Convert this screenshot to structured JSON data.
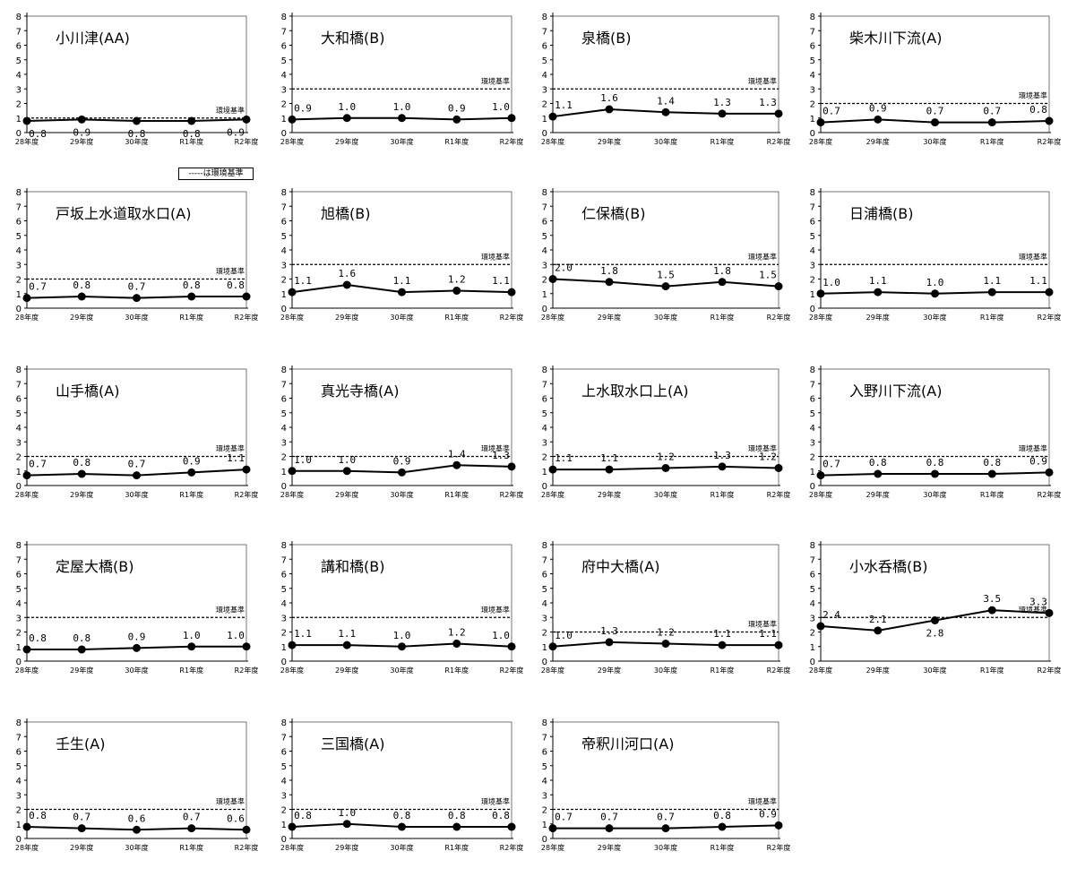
{
  "legend_note": "-----は環境基準",
  "std_label": "環境基準",
  "x_categories": [
    "28年度",
    "29年度",
    "30年度",
    "R1年度",
    "R2年度"
  ],
  "y_ticks": [
    "0",
    "1",
    "2",
    "3",
    "4",
    "5",
    "6",
    "7",
    "8"
  ],
  "chart_data": [
    {
      "type": "line",
      "title": "小川津(AA)",
      "categories": [
        "28年度",
        "29年度",
        "30年度",
        "R1年度",
        "R2年度"
      ],
      "values": [
        0.8,
        0.9,
        0.8,
        0.8,
        0.9
      ],
      "value_labels": [
        "0.8",
        "0.9",
        "0.8",
        "0.8",
        "0.9"
      ],
      "standard": 1,
      "ylim": [
        0,
        8
      ]
    },
    {
      "type": "line",
      "title": "大和橋(B)",
      "categories": [
        "28年度",
        "29年度",
        "30年度",
        "R1年度",
        "R2年度"
      ],
      "values": [
        0.9,
        1.0,
        1.0,
        0.9,
        1.0
      ],
      "value_labels": [
        "0.9",
        "1.0",
        "1.0",
        "0.9",
        "1.0"
      ],
      "standard": 3,
      "ylim": [
        0,
        8
      ]
    },
    {
      "type": "line",
      "title": "泉橋(B)",
      "categories": [
        "28年度",
        "29年度",
        "30年度",
        "R1年度",
        "R2年度"
      ],
      "values": [
        1.1,
        1.6,
        1.4,
        1.3,
        1.3
      ],
      "value_labels": [
        "1.1",
        "1.6",
        "1.4",
        "1.3",
        "1.3"
      ],
      "standard": 3,
      "ylim": [
        0,
        8
      ]
    },
    {
      "type": "line",
      "title": "柴木川下流(A)",
      "categories": [
        "28年度",
        "29年度",
        "30年度",
        "R1年度",
        "R2年度"
      ],
      "values": [
        0.7,
        0.9,
        0.7,
        0.7,
        0.8
      ],
      "value_labels": [
        "0.7",
        "0.9",
        "0.7",
        "0.7",
        "0.8"
      ],
      "standard": 2,
      "ylim": [
        0,
        8
      ]
    },
    {
      "type": "line",
      "title": "戸坂上水道取水口(A)",
      "categories": [
        "28年度",
        "29年度",
        "30年度",
        "R1年度",
        "R2年度"
      ],
      "values": [
        0.7,
        0.8,
        0.7,
        0.8,
        0.8
      ],
      "value_labels": [
        "0.7",
        "0.8",
        "0.7",
        "0.8",
        "0.8"
      ],
      "standard": 2,
      "ylim": [
        0,
        8
      ]
    },
    {
      "type": "line",
      "title": "旭橋(B)",
      "categories": [
        "28年度",
        "29年度",
        "30年度",
        "R1年度",
        "R2年度"
      ],
      "values": [
        1.1,
        1.6,
        1.1,
        1.2,
        1.1
      ],
      "value_labels": [
        "1.1",
        "1.6",
        "1.1",
        "1.2",
        "1.1"
      ],
      "standard": 3,
      "ylim": [
        0,
        8
      ]
    },
    {
      "type": "line",
      "title": "仁保橋(B)",
      "categories": [
        "28年度",
        "29年度",
        "30年度",
        "R1年度",
        "R2年度"
      ],
      "values": [
        2.0,
        1.8,
        1.5,
        1.8,
        1.5
      ],
      "value_labels": [
        "2.0",
        "1.8",
        "1.5",
        "1.8",
        "1.5"
      ],
      "standard": 3,
      "ylim": [
        0,
        8
      ]
    },
    {
      "type": "line",
      "title": "日浦橋(B)",
      "categories": [
        "28年度",
        "29年度",
        "30年度",
        "R1年度",
        "R2年度"
      ],
      "values": [
        1.0,
        1.1,
        1.0,
        1.1,
        1.1
      ],
      "value_labels": [
        "1.0",
        "1.1",
        "1.0",
        "1.1",
        "1.1"
      ],
      "standard": 3,
      "ylim": [
        0,
        8
      ]
    },
    {
      "type": "line",
      "title": "山手橋(A)",
      "categories": [
        "28年度",
        "29年度",
        "30年度",
        "R1年度",
        "R2年度"
      ],
      "values": [
        0.7,
        0.8,
        0.7,
        0.9,
        1.1
      ],
      "value_labels": [
        "0.7",
        "0.8",
        "0.7",
        "0.9",
        "1.1"
      ],
      "standard": 2,
      "ylim": [
        0,
        8
      ]
    },
    {
      "type": "line",
      "title": "真光寺橋(A)",
      "categories": [
        "28年度",
        "29年度",
        "30年度",
        "R1年度",
        "R2年度"
      ],
      "values": [
        1.0,
        1.0,
        0.9,
        1.4,
        1.3
      ],
      "value_labels": [
        "1.0",
        "1.0",
        "0.9",
        "1.4",
        "1.3"
      ],
      "standard": 2,
      "ylim": [
        0,
        8
      ]
    },
    {
      "type": "line",
      "title": "上水取水口上(A)",
      "categories": [
        "28年度",
        "29年度",
        "30年度",
        "R1年度",
        "R2年度"
      ],
      "values": [
        1.1,
        1.1,
        1.2,
        1.3,
        1.2
      ],
      "value_labels": [
        "1.1",
        "1.1",
        "1.2",
        "1.3",
        "1.2"
      ],
      "standard": 2,
      "ylim": [
        0,
        8
      ]
    },
    {
      "type": "line",
      "title": "入野川下流(A)",
      "categories": [
        "28年度",
        "29年度",
        "30年度",
        "R1年度",
        "R2年度"
      ],
      "values": [
        0.7,
        0.8,
        0.8,
        0.8,
        0.9
      ],
      "value_labels": [
        "0.7",
        "0.8",
        "0.8",
        "0.8",
        "0.9"
      ],
      "standard": 2,
      "ylim": [
        0,
        8
      ]
    },
    {
      "type": "line",
      "title": "定屋大橋(B)",
      "categories": [
        "28年度",
        "29年度",
        "30年度",
        "R1年度",
        "R2年度"
      ],
      "values": [
        0.8,
        0.8,
        0.9,
        1.0,
        1.0
      ],
      "value_labels": [
        "0.8",
        "0.8",
        "0.9",
        "1.0",
        "1.0"
      ],
      "standard": 3,
      "ylim": [
        0,
        8
      ]
    },
    {
      "type": "line",
      "title": "講和橋(B)",
      "categories": [
        "28年度",
        "29年度",
        "30年度",
        "R1年度",
        "R2年度"
      ],
      "values": [
        1.1,
        1.1,
        1.0,
        1.2,
        1.0
      ],
      "value_labels": [
        "1.1",
        "1.1",
        "1.0",
        "1.2",
        "1.0"
      ],
      "standard": 3,
      "ylim": [
        0,
        8
      ]
    },
    {
      "type": "line",
      "title": "府中大橋(A)",
      "categories": [
        "28年度",
        "29年度",
        "30年度",
        "R1年度",
        "R2年度"
      ],
      "values": [
        1.0,
        1.3,
        1.2,
        1.1,
        1.1
      ],
      "value_labels": [
        "1.0",
        "1.3",
        "1.2",
        "1.1",
        "1.1"
      ],
      "standard": 2,
      "ylim": [
        0,
        8
      ]
    },
    {
      "type": "line",
      "title": "小水呑橋(B)",
      "categories": [
        "28年度",
        "29年度",
        "30年度",
        "R1年度",
        "R2年度"
      ],
      "values": [
        2.4,
        2.1,
        2.8,
        3.5,
        3.3
      ],
      "value_labels": [
        "2.4",
        "2.1",
        "2.8",
        "3.5",
        "3.3"
      ],
      "standard": 3,
      "ylim": [
        0,
        8
      ]
    },
    {
      "type": "line",
      "title": "壬生(A)",
      "categories": [
        "28年度",
        "29年度",
        "30年度",
        "R1年度",
        "R2年度"
      ],
      "values": [
        0.8,
        0.7,
        0.6,
        0.7,
        0.6
      ],
      "value_labels": [
        "0.8",
        "0.7",
        "0.6",
        "0.7",
        "0.6"
      ],
      "standard": 2,
      "ylim": [
        0,
        8
      ]
    },
    {
      "type": "line",
      "title": "三国橋(A)",
      "categories": [
        "28年度",
        "29年度",
        "30年度",
        "R1年度",
        "R2年度"
      ],
      "values": [
        0.8,
        1.0,
        0.8,
        0.8,
        0.8
      ],
      "value_labels": [
        "0.8",
        "1.0",
        "0.8",
        "0.8",
        "0.8"
      ],
      "standard": 2,
      "ylim": [
        0,
        8
      ]
    },
    {
      "type": "line",
      "title": "帝釈川河口(A)",
      "categories": [
        "28年度",
        "29年度",
        "30年度",
        "R1年度",
        "R2年度"
      ],
      "values": [
        0.7,
        0.7,
        0.7,
        0.8,
        0.9
      ],
      "value_labels": [
        "0.7",
        "0.7",
        "0.7",
        "0.8",
        "0.9"
      ],
      "standard": 2,
      "ylim": [
        0,
        8
      ]
    }
  ]
}
